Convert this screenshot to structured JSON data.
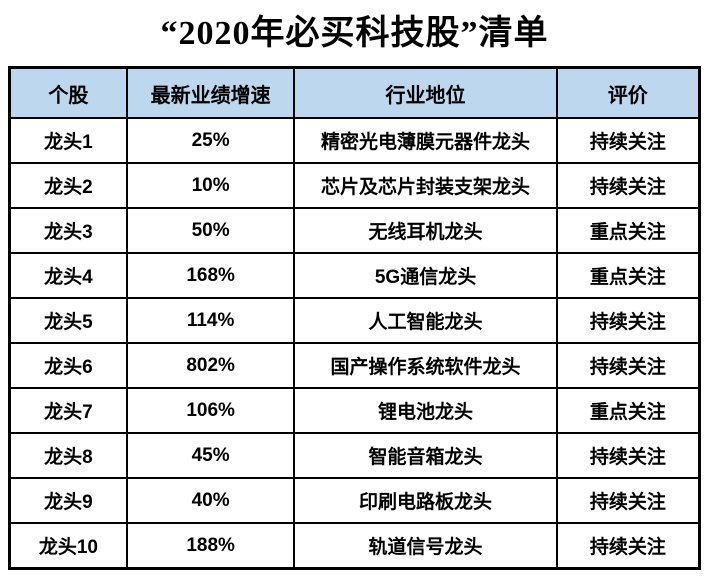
{
  "title": "“2020年必买科技股”清单",
  "colors": {
    "header_bg": "#bdd7ee",
    "border": "#000000",
    "text": "#000000",
    "emphasis_text": "#ff0000"
  },
  "table": {
    "headers": [
      "个股",
      "最新业绩增速",
      "行业地位",
      "评价"
    ],
    "rows": [
      {
        "stock": "龙头1",
        "growth": "25%",
        "position": "精密光电薄膜元器件龙头",
        "rating": "持续关注",
        "emphasis": false
      },
      {
        "stock": "龙头2",
        "growth": "10%",
        "position": "芯片及芯片封装支架龙头",
        "rating": "持续关注",
        "emphasis": false
      },
      {
        "stock": "龙头3",
        "growth": "50%",
        "position": "无线耳机龙头",
        "rating": "重点关注",
        "emphasis": true
      },
      {
        "stock": "龙头4",
        "growth": "168%",
        "position": "5G通信龙头",
        "rating": "重点关注",
        "emphasis": true
      },
      {
        "stock": "龙头5",
        "growth": "114%",
        "position": "人工智能龙头",
        "rating": "持续关注",
        "emphasis": false
      },
      {
        "stock": "龙头6",
        "growth": "802%",
        "position": "国产操作系统软件龙头",
        "rating": "持续关注",
        "emphasis": false
      },
      {
        "stock": "龙头7",
        "growth": "106%",
        "position": "锂电池龙头",
        "rating": "重点关注",
        "emphasis": true
      },
      {
        "stock": "龙头8",
        "growth": "45%",
        "position": "智能音箱龙头",
        "rating": "持续关注",
        "emphasis": false
      },
      {
        "stock": "龙头9",
        "growth": "40%",
        "position": "印刷电路板龙头",
        "rating": "持续关注",
        "emphasis": false
      },
      {
        "stock": "龙头10",
        "growth": "188%",
        "position": "轨道信号龙头",
        "rating": "持续关注",
        "emphasis": false
      }
    ]
  },
  "chart_data": {
    "type": "table",
    "title": "“2020年必买科技股”清单",
    "columns": [
      "个股",
      "最新业绩增速",
      "行业地位",
      "评价"
    ],
    "rows": [
      [
        "龙头1",
        "25%",
        "精密光电薄膜元器件龙头",
        "持续关注"
      ],
      [
        "龙头2",
        "10%",
        "芯片及芯片封装支架龙头",
        "持续关注"
      ],
      [
        "龙头3",
        "50%",
        "无线耳机龙头",
        "重点关注"
      ],
      [
        "龙头4",
        "168%",
        "5G通信龙头",
        "重点关注"
      ],
      [
        "龙头5",
        "114%",
        "人工智能龙头",
        "持续关注"
      ],
      [
        "龙头6",
        "802%",
        "国产操作系统软件龙头",
        "持续关注"
      ],
      [
        "龙头7",
        "106%",
        "锂电池龙头",
        "重点关注"
      ],
      [
        "龙头8",
        "45%",
        "智能音箱龙头",
        "持续关注"
      ],
      [
        "龙头9",
        "40%",
        "印刷电路板龙头",
        "持续关注"
      ],
      [
        "龙头10",
        "188%",
        "轨道信号龙头",
        "持续关注"
      ]
    ],
    "growth_values_pct": [
      25,
      10,
      50,
      168,
      114,
      802,
      106,
      45,
      40,
      188
    ],
    "emphasis_rows": [
      "龙头3",
      "龙头4",
      "龙头7"
    ],
    "layout": "header row shaded light blue, black grid borders, emphasis ratings in red"
  }
}
